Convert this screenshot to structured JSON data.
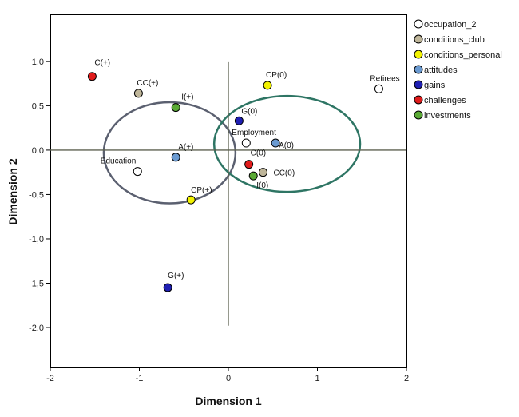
{
  "chart_data": {
    "type": "scatter",
    "title": "",
    "xlabel": "Dimension 1",
    "ylabel": "Dimension 2",
    "xlim": [
      -2.0,
      2.0
    ],
    "ylim": [
      -2.45,
      1.53
    ],
    "x_ticks": [
      -2,
      -1,
      0,
      1,
      2
    ],
    "x_tick_labels": [
      "-2",
      "-1",
      "0",
      "1",
      "2"
    ],
    "y_ticks": [
      1.0,
      0.5,
      0.0,
      -0.5,
      -1.0,
      -1.5,
      -2.0
    ],
    "y_tick_labels": [
      "1,0",
      "0,5",
      "0,0",
      "-0,5",
      "-1,0",
      "-1,5",
      "-2,0"
    ],
    "grid": false,
    "legend_position": "right",
    "series": [
      {
        "name": "occupation_2",
        "color": "#ffffff",
        "points": [
          {
            "label": "Education",
            "x": -1.02,
            "y": -0.24
          },
          {
            "label": "Employment",
            "x": 0.2,
            "y": 0.08
          },
          {
            "label": "Retirees",
            "x": 1.69,
            "y": 0.69
          }
        ]
      },
      {
        "name": "conditions_club",
        "color": "#bfb69a",
        "points": [
          {
            "label": "CC(+)",
            "x": -1.01,
            "y": 0.64
          },
          {
            "label": "CC(0)",
            "x": 0.39,
            "y": -0.25
          }
        ]
      },
      {
        "name": "conditions_personal",
        "color": "#f2f200",
        "points": [
          {
            "label": "CP(0)",
            "x": 0.44,
            "y": 0.73
          },
          {
            "label": "CP(+)",
            "x": -0.42,
            "y": -0.56
          }
        ]
      },
      {
        "name": "attitudes",
        "color": "#6a9ad1",
        "points": [
          {
            "label": "A(+)",
            "x": -0.59,
            "y": -0.08
          },
          {
            "label": "A(0)",
            "x": 0.53,
            "y": 0.08
          }
        ]
      },
      {
        "name": "gains",
        "color": "#1f1fb3",
        "points": [
          {
            "label": "G(0)",
            "x": 0.12,
            "y": 0.33
          },
          {
            "label": "G(+)",
            "x": -0.68,
            "y": -1.55
          }
        ]
      },
      {
        "name": "challenges",
        "color": "#e01b1b",
        "points": [
          {
            "label": "C(+)",
            "x": -1.53,
            "y": 0.83
          },
          {
            "label": "C(0)",
            "x": 0.23,
            "y": -0.16
          }
        ]
      },
      {
        "name": "investments",
        "color": "#5aaa35",
        "points": [
          {
            "label": "I(+)",
            "x": -0.59,
            "y": 0.48
          },
          {
            "label": "I(0)",
            "x": 0.28,
            "y": -0.29
          }
        ]
      }
    ],
    "circles": [
      {
        "cx": -0.66,
        "cy": -0.03,
        "rx": 0.74,
        "ry": 0.57,
        "color": "#5b6070"
      },
      {
        "cx": 0.66,
        "cy": 0.07,
        "rx": 0.82,
        "ry": 0.54,
        "color": "#2e7564"
      }
    ]
  }
}
